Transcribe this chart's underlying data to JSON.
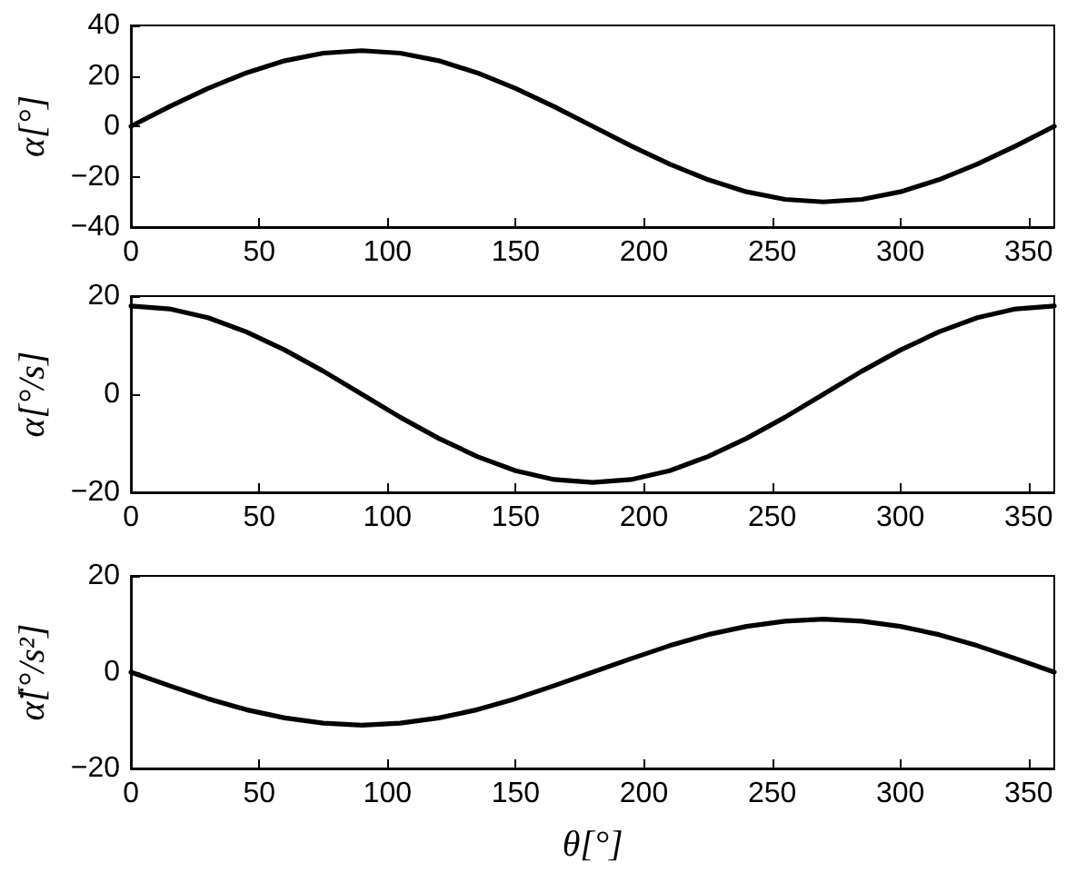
{
  "chart_data": [
    {
      "type": "line",
      "ylabel": "α[°]",
      "x": [
        0,
        15,
        30,
        45,
        60,
        75,
        90,
        105,
        120,
        135,
        150,
        165,
        180,
        195,
        210,
        225,
        240,
        255,
        270,
        285,
        300,
        315,
        330,
        345,
        360
      ],
      "xlim": [
        0,
        360
      ],
      "xticks": [
        0,
        50,
        100,
        150,
        200,
        250,
        300,
        350
      ],
      "ylim": [
        -40,
        40
      ],
      "yticks": [
        -40,
        -20,
        0,
        20,
        40
      ],
      "series": [
        {
          "color": "#000000",
          "values": [
            0,
            7.8,
            15,
            21.2,
            26,
            29,
            30,
            29,
            26,
            21.2,
            15,
            7.8,
            0,
            -7.8,
            -15,
            -21.2,
            -26,
            -29,
            -30,
            -29,
            -26,
            -21.2,
            -15,
            -7.8,
            0
          ]
        }
      ]
    },
    {
      "type": "line",
      "ylabel": "α̇[°/s]",
      "x": [
        0,
        15,
        30,
        45,
        60,
        75,
        90,
        105,
        120,
        135,
        150,
        165,
        180,
        195,
        210,
        225,
        240,
        255,
        270,
        285,
        300,
        315,
        330,
        345,
        360
      ],
      "xlim": [
        0,
        360
      ],
      "xticks": [
        0,
        50,
        100,
        150,
        200,
        250,
        300,
        350
      ],
      "ylim": [
        -20,
        20
      ],
      "yticks": [
        -20,
        0,
        20
      ],
      "series": [
        {
          "color": "#000000",
          "values": [
            18,
            17.4,
            15.6,
            12.7,
            9,
            4.7,
            0,
            -4.7,
            -9,
            -12.7,
            -15.6,
            -17.4,
            -18,
            -17.4,
            -15.6,
            -12.7,
            -9,
            -4.7,
            0,
            4.7,
            9,
            12.7,
            15.6,
            17.4,
            18
          ]
        }
      ]
    },
    {
      "type": "line",
      "ylabel": "α̈[°/s²]",
      "xlabel": "θ[°]",
      "x": [
        0,
        15,
        30,
        45,
        60,
        75,
        90,
        105,
        120,
        135,
        150,
        165,
        180,
        195,
        210,
        225,
        240,
        255,
        270,
        285,
        300,
        315,
        330,
        345,
        360
      ],
      "xlim": [
        0,
        360
      ],
      "xticks": [
        0,
        50,
        100,
        150,
        200,
        250,
        300,
        350
      ],
      "ylim": [
        -20,
        20
      ],
      "yticks": [
        -20,
        0,
        20
      ],
      "series": [
        {
          "color": "#000000",
          "values": [
            0,
            -2.8,
            -5.5,
            -7.8,
            -9.5,
            -10.6,
            -11,
            -10.6,
            -9.5,
            -7.8,
            -5.5,
            -2.8,
            0,
            2.8,
            5.5,
            7.8,
            9.5,
            10.6,
            11,
            10.6,
            9.5,
            7.8,
            5.5,
            2.8,
            0
          ]
        }
      ]
    }
  ]
}
